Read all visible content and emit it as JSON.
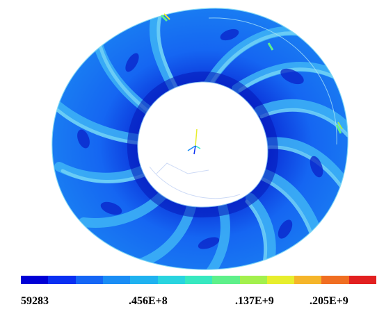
{
  "figure": {
    "description_visible": "",
    "legend": {
      "colors": [
        "#0000d6",
        "#0a2ff2",
        "#1566f5",
        "#1a8df5",
        "#1fb2f0",
        "#29d4df",
        "#37e8c0",
        "#5ef08a",
        "#a3f04d",
        "#e7ee2d",
        "#f5b52a",
        "#f06e22",
        "#e22020"
      ],
      "labels": [
        "59283",
        ".456E+8",
        ".137E+9",
        ".205E+9"
      ]
    },
    "ring_colors": {
      "base": "#1b7cf1",
      "dark": "#0a34d8",
      "light": "#3fb4f6",
      "highlight": "#45d8e3",
      "edge": "#7fd8f5"
    }
  }
}
